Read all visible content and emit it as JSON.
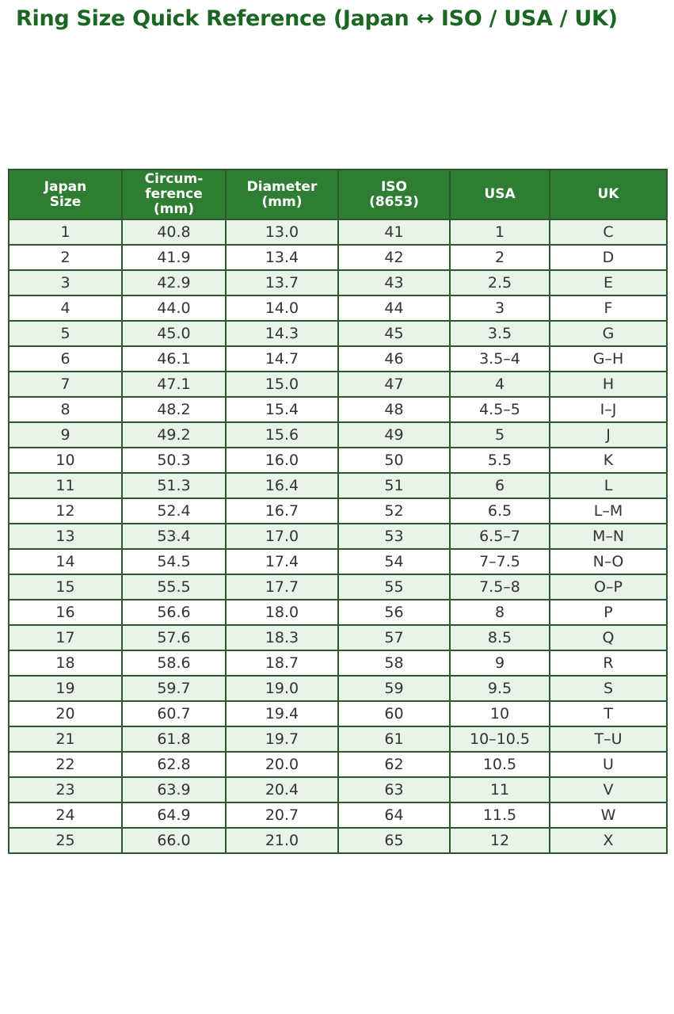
{
  "title": {
    "text": "Ring Size Quick Reference (Japan ↔ ISO / USA / UK)"
  },
  "style": {
    "title_color": "#1b6623",
    "header_bg": "#2e7d32",
    "header_text_color": "#ffffff",
    "stripe_row_color": "#e8f4e8",
    "plain_row_color": "#ffffff",
    "border_color": "#2d572c",
    "cell_text_color": "#333333",
    "page_bg": "#ffffff"
  },
  "chart_data": {
    "type": "table",
    "title": "Ring Size Quick Reference (Japan ↔ ISO / USA / UK)",
    "columns": [
      "Japan\nSize",
      "Circum-\nference\n(mm)",
      "Diameter\n(mm)",
      "ISO\n(8653)",
      "USA",
      "UK"
    ],
    "rows": [
      [
        "1",
        "40.8",
        "13.0",
        "41",
        "1",
        "C"
      ],
      [
        "2",
        "41.9",
        "13.4",
        "42",
        "2",
        "D"
      ],
      [
        "3",
        "42.9",
        "13.7",
        "43",
        "2.5",
        "E"
      ],
      [
        "4",
        "44.0",
        "14.0",
        "44",
        "3",
        "F"
      ],
      [
        "5",
        "45.0",
        "14.3",
        "45",
        "3.5",
        "G"
      ],
      [
        "6",
        "46.1",
        "14.7",
        "46",
        "3.5–4",
        "G–H"
      ],
      [
        "7",
        "47.1",
        "15.0",
        "47",
        "4",
        "H"
      ],
      [
        "8",
        "48.2",
        "15.4",
        "48",
        "4.5–5",
        "I–J"
      ],
      [
        "9",
        "49.2",
        "15.6",
        "49",
        "5",
        "J"
      ],
      [
        "10",
        "50.3",
        "16.0",
        "50",
        "5.5",
        "K"
      ],
      [
        "11",
        "51.3",
        "16.4",
        "51",
        "6",
        "L"
      ],
      [
        "12",
        "52.4",
        "16.7",
        "52",
        "6.5",
        "L–M"
      ],
      [
        "13",
        "53.4",
        "17.0",
        "53",
        "6.5–7",
        "M–N"
      ],
      [
        "14",
        "54.5",
        "17.4",
        "54",
        "7–7.5",
        "N–O"
      ],
      [
        "15",
        "55.5",
        "17.7",
        "55",
        "7.5–8",
        "O–P"
      ],
      [
        "16",
        "56.6",
        "18.0",
        "56",
        "8",
        "P"
      ],
      [
        "17",
        "57.6",
        "18.3",
        "57",
        "8.5",
        "Q"
      ],
      [
        "18",
        "58.6",
        "18.7",
        "58",
        "9",
        "R"
      ],
      [
        "19",
        "59.7",
        "19.0",
        "59",
        "9.5",
        "S"
      ],
      [
        "20",
        "60.7",
        "19.4",
        "60",
        "10",
        "T"
      ],
      [
        "21",
        "61.8",
        "19.7",
        "61",
        "10–10.5",
        "T–U"
      ],
      [
        "22",
        "62.8",
        "20.0",
        "62",
        "10.5",
        "U"
      ],
      [
        "23",
        "63.9",
        "20.4",
        "63",
        "11",
        "V"
      ],
      [
        "24",
        "64.9",
        "20.7",
        "64",
        "11.5",
        "W"
      ],
      [
        "25",
        "66.0",
        "21.0",
        "65",
        "12",
        "X"
      ]
    ]
  }
}
